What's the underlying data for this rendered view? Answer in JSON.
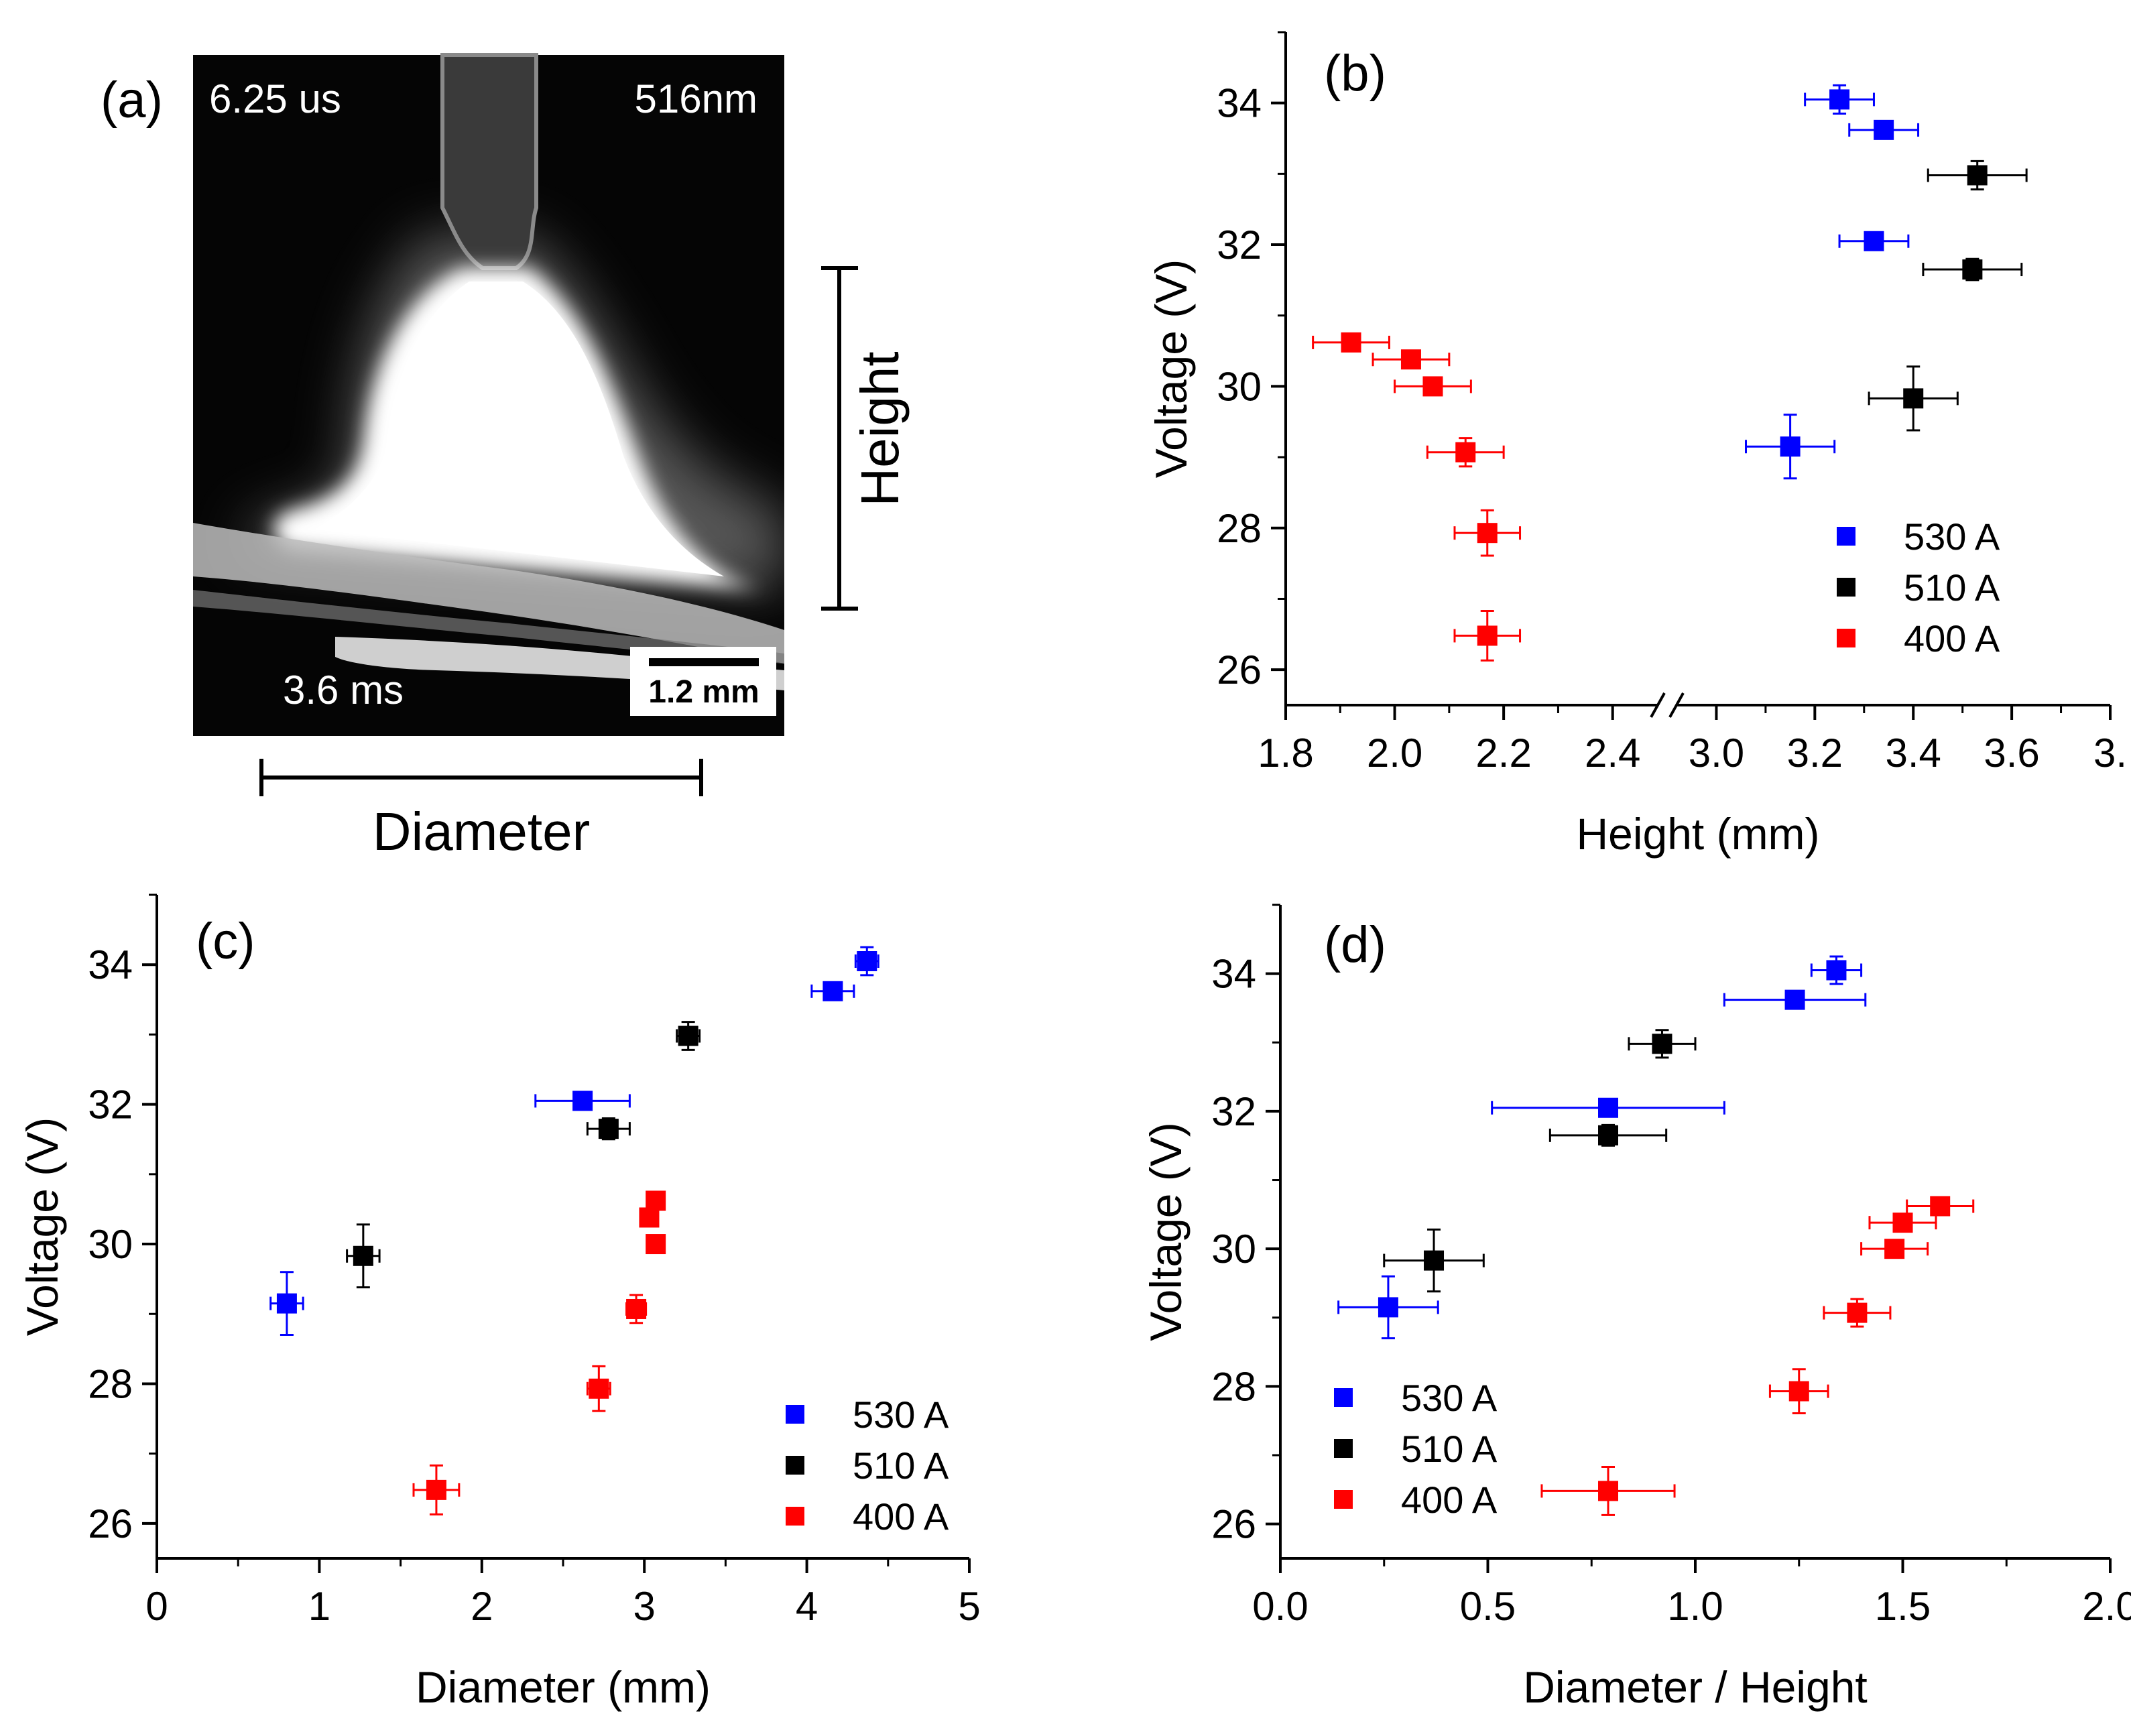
{
  "panel_a": {
    "label": "(a)",
    "time_top": "6.25 us",
    "wavelength": "516nm",
    "time_bottom": "3.6 ms",
    "scale_bar": "1.2 mm",
    "height_label": "Height",
    "diameter_label": "Diameter"
  },
  "colors": {
    "530 A": "#0000ff",
    "510 A": "#000000",
    "400 A": "#ff0000"
  },
  "chart_data": [
    {
      "id": "b",
      "label": "(b)",
      "type": "scatter",
      "xlabel": "Height (mm)",
      "ylabel": "Voltage (V)",
      "x_break": true,
      "x_segments": [
        {
          "range": [
            1.8,
            2.5
          ],
          "ticks": [
            "1.8",
            "2.0",
            "2.2",
            "2.4"
          ]
        },
        {
          "range": [
            2.9,
            3.8
          ],
          "ticks": [
            "3.0",
            "3.2",
            "3.4",
            "3.6",
            "3."
          ]
        }
      ],
      "ylim": [
        25.5,
        35
      ],
      "yticks": [
        "26",
        "28",
        "30",
        "32",
        "34"
      ],
      "legend_position": "bottom-right",
      "series": [
        {
          "name": "530 A",
          "points": [
            {
              "x": 3.25,
              "y": 34.05,
              "xerr": 0.07,
              "yerr": 0.2
            },
            {
              "x": 3.34,
              "y": 33.62,
              "xerr": 0.07,
              "yerr": 0.1
            },
            {
              "x": 3.32,
              "y": 32.05,
              "xerr": 0.07,
              "yerr": 0.1
            },
            {
              "x": 3.15,
              "y": 29.15,
              "xerr": 0.09,
              "yerr": 0.45
            }
          ]
        },
        {
          "name": "510 A",
          "points": [
            {
              "x": 3.53,
              "y": 32.98,
              "xerr": 0.1,
              "yerr": 0.2
            },
            {
              "x": 3.52,
              "y": 31.65,
              "xerr": 0.1,
              "yerr": 0.15
            },
            {
              "x": 3.4,
              "y": 29.83,
              "xerr": 0.09,
              "yerr": 0.45
            }
          ]
        },
        {
          "name": "400 A",
          "points": [
            {
              "x": 1.92,
              "y": 30.62,
              "xerr": 0.07,
              "yerr": 0.1
            },
            {
              "x": 2.03,
              "y": 30.38,
              "xerr": 0.07,
              "yerr": 0.1
            },
            {
              "x": 2.07,
              "y": 30.0,
              "xerr": 0.07,
              "yerr": 0.1
            },
            {
              "x": 2.13,
              "y": 29.07,
              "xerr": 0.07,
              "yerr": 0.2
            },
            {
              "x": 2.17,
              "y": 27.93,
              "xerr": 0.06,
              "yerr": 0.32
            },
            {
              "x": 2.17,
              "y": 26.48,
              "xerr": 0.06,
              "yerr": 0.35
            }
          ]
        }
      ]
    },
    {
      "id": "c",
      "label": "(c)",
      "type": "scatter",
      "xlabel": "Diameter (mm)",
      "ylabel": "Voltage (V)",
      "xlim": [
        0,
        5
      ],
      "xticks": [
        "0",
        "1",
        "2",
        "3",
        "4",
        "5"
      ],
      "ylim": [
        25.5,
        35
      ],
      "yticks": [
        "26",
        "28",
        "30",
        "32",
        "34"
      ],
      "legend_position": "bottom-right",
      "series": [
        {
          "name": "530 A",
          "points": [
            {
              "x": 4.37,
              "y": 34.05,
              "xerr": 0.07,
              "yerr": 0.2
            },
            {
              "x": 4.16,
              "y": 33.62,
              "xerr": 0.13,
              "yerr": 0.1
            },
            {
              "x": 2.62,
              "y": 32.05,
              "xerr": 0.29,
              "yerr": 0.1
            },
            {
              "x": 0.8,
              "y": 29.15,
              "xerr": 0.1,
              "yerr": 0.45
            }
          ]
        },
        {
          "name": "510 A",
          "points": [
            {
              "x": 3.27,
              "y": 32.98,
              "xerr": 0.07,
              "yerr": 0.2
            },
            {
              "x": 2.78,
              "y": 31.65,
              "xerr": 0.13,
              "yerr": 0.15
            },
            {
              "x": 1.27,
              "y": 29.83,
              "xerr": 0.1,
              "yerr": 0.45
            }
          ]
        },
        {
          "name": "400 A",
          "points": [
            {
              "x": 3.07,
              "y": 30.62,
              "xerr": 0.05,
              "yerr": 0.1
            },
            {
              "x": 3.03,
              "y": 30.38,
              "xerr": 0.05,
              "yerr": 0.1
            },
            {
              "x": 3.07,
              "y": 30.0,
              "xerr": 0.05,
              "yerr": 0.1
            },
            {
              "x": 2.95,
              "y": 29.07,
              "xerr": 0.06,
              "yerr": 0.2
            },
            {
              "x": 2.72,
              "y": 27.93,
              "xerr": 0.07,
              "yerr": 0.32
            },
            {
              "x": 1.72,
              "y": 26.48,
              "xerr": 0.14,
              "yerr": 0.35
            }
          ]
        }
      ]
    },
    {
      "id": "d",
      "label": "(d)",
      "type": "scatter",
      "xlabel": "Diameter / Height",
      "ylabel": "Voltage (V)",
      "xlim": [
        0,
        2
      ],
      "xticks": [
        "0.0",
        "0.5",
        "1.0",
        "1.5",
        "2.0"
      ],
      "ylim": [
        25.5,
        35
      ],
      "yticks": [
        "26",
        "28",
        "30",
        "32",
        "34"
      ],
      "legend_position": "bottom-left",
      "series": [
        {
          "name": "530 A",
          "points": [
            {
              "x": 1.34,
              "y": 34.05,
              "xerr": 0.06,
              "yerr": 0.2
            },
            {
              "x": 1.24,
              "y": 33.62,
              "xerr": 0.17,
              "yerr": 0.1
            },
            {
              "x": 0.79,
              "y": 32.05,
              "xerr": 0.28,
              "yerr": 0.1
            },
            {
              "x": 0.26,
              "y": 29.15,
              "xerr": 0.12,
              "yerr": 0.45
            }
          ]
        },
        {
          "name": "510 A",
          "points": [
            {
              "x": 0.92,
              "y": 32.98,
              "xerr": 0.08,
              "yerr": 0.2
            },
            {
              "x": 0.79,
              "y": 31.65,
              "xerr": 0.14,
              "yerr": 0.15
            },
            {
              "x": 0.37,
              "y": 29.83,
              "xerr": 0.12,
              "yerr": 0.45
            }
          ]
        },
        {
          "name": "400 A",
          "points": [
            {
              "x": 1.59,
              "y": 30.62,
              "xerr": 0.08,
              "yerr": 0.1
            },
            {
              "x": 1.5,
              "y": 30.38,
              "xerr": 0.08,
              "yerr": 0.1
            },
            {
              "x": 1.48,
              "y": 30.0,
              "xerr": 0.08,
              "yerr": 0.1
            },
            {
              "x": 1.39,
              "y": 29.07,
              "xerr": 0.08,
              "yerr": 0.2
            },
            {
              "x": 1.25,
              "y": 27.93,
              "xerr": 0.07,
              "yerr": 0.32
            },
            {
              "x": 0.79,
              "y": 26.48,
              "xerr": 0.16,
              "yerr": 0.35
            }
          ]
        }
      ]
    }
  ]
}
